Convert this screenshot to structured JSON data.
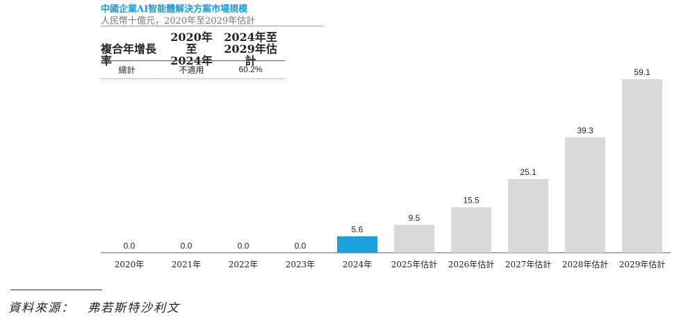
{
  "header": {
    "title": "中國企業AI智能體解決方案市場規模",
    "subtitle": "人民幣十億元，2020年至2029年估計"
  },
  "cagr_table": {
    "row_label": "複合年增長率",
    "col1_line1": "2020年至",
    "col1_line2": "2024年",
    "col2_line1": "2024年至",
    "col2_line2": "2029年估計",
    "total_label": "總計",
    "col1_value": "不適用",
    "col2_value": "60.2%"
  },
  "source": "資料來源：　弗若斯特沙利文",
  "colors": {
    "title": "#1a9bd7",
    "highlight_bar": "#1ba1dd",
    "bar": "#d9d9d9",
    "axis": "#555555"
  },
  "chart_data": {
    "type": "bar",
    "title": "中國企業AI智能體解決方案市場規模",
    "subtitle": "人民幣十億元，2020年至2029年估計",
    "categories": [
      "2020年",
      "2021年",
      "2022年",
      "2023年",
      "2024年",
      "2025年估計",
      "2026年估計",
      "2027年估計",
      "2028年估計",
      "2029年估計"
    ],
    "values": [
      0.0,
      0.0,
      0.0,
      0.0,
      5.6,
      9.5,
      15.5,
      25.1,
      39.3,
      59.1
    ],
    "value_labels": [
      "0.0",
      "0.0",
      "0.0",
      "0.0",
      "5.6",
      "9.5",
      "15.5",
      "25.1",
      "39.3",
      "59.1"
    ],
    "highlight_index": 4,
    "ylim": [
      0,
      59.1
    ],
    "grid": false,
    "xlabel": "",
    "ylabel": ""
  }
}
